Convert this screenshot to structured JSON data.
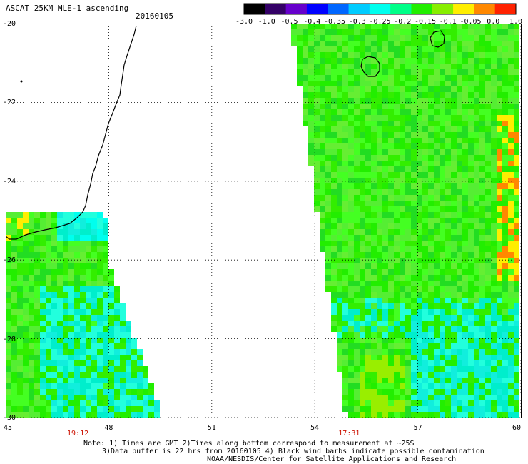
{
  "header": {
    "title": "ASCAT 25KM MLE-1 ascending",
    "date": "20160105"
  },
  "colorbar": {
    "labels": [
      "-3.0",
      "-1.0",
      "-0.5",
      "-0.4",
      "-0.35",
      "-0.3",
      "-0.25",
      "-0.2",
      "-0.15",
      "-0.1",
      "-0.05",
      "0.0",
      "1.0"
    ],
    "colors": [
      "#000000",
      "#330066",
      "#6600cc",
      "#0000ff",
      "#0066ff",
      "#00ccff",
      "#00ffee",
      "#00ff88",
      "#22ee00",
      "#88ee00",
      "#ffee00",
      "#ff8800",
      "#ff2200"
    ]
  },
  "map": {
    "lat_labels": [
      "-20",
      "-22",
      "-24",
      "-26",
      "-28",
      "-30"
    ],
    "lon_labels": [
      "45",
      "48",
      "51",
      "54",
      "57",
      "60"
    ],
    "time_labels": [
      {
        "text": "19:12",
        "lon": 47.1
      },
      {
        "text": "17:31",
        "lon": 55.0
      }
    ],
    "lat_range": [
      -30,
      -20
    ],
    "lon_range": [
      45,
      60
    ]
  },
  "notes": {
    "line1": "Note: 1) Times are GMT 2)Times along bottom correspond to measurement at ~25S",
    "line2": "3)Data buffer is 22 hrs from 20160105 4) Black wind barbs indicate possible contamination",
    "line3": "NOAA/NESDIS/Center for Satellite Applications and Research"
  }
}
